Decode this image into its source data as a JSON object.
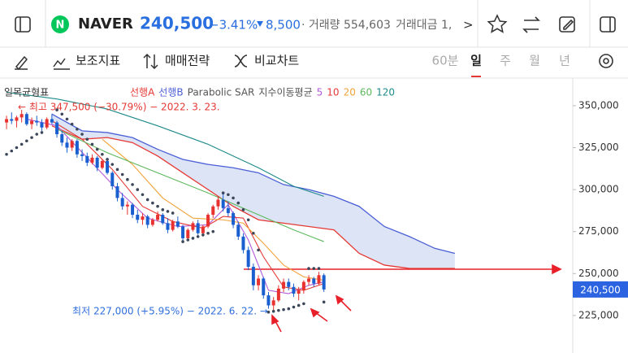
{
  "header": {
    "name": "NAVER",
    "price": "240,500",
    "change_pct": "−3.41%",
    "change": "8,500",
    "volume": "· 거래량 554,603",
    "amount": "거래대금 1,",
    "more": ">"
  },
  "toolbar": {
    "indicators": "보조지표",
    "strategy": "매매전략",
    "compare": "비교차트",
    "periods": [
      "60분",
      "일",
      "주",
      "월",
      "년"
    ],
    "active_period": 1
  },
  "chart_data": {
    "type": "candlestick",
    "title": "일목균형표",
    "xlim": [
      -1.3,
      111.6
    ],
    "ylim": [
      207000,
      364500
    ],
    "yticks": [
      {
        "value": 225000,
        "label": "225,000"
      },
      {
        "value": 250000,
        "label": "250,000"
      },
      {
        "value": 275000,
        "label": "275,000"
      },
      {
        "value": 300000,
        "label": "300,000"
      },
      {
        "value": 325000,
        "label": "325,000"
      },
      {
        "value": 350000,
        "label": "350,000"
      }
    ],
    "candles": {
      "up_color": "#e8322f",
      "down_color": "#1a5fd0",
      "x": [
        0,
        1,
        2,
        3,
        4,
        5,
        6,
        7,
        8,
        9,
        10,
        11,
        12,
        13,
        14,
        15,
        16,
        17,
        18,
        19,
        20,
        21,
        22,
        23,
        24,
        25,
        26,
        27,
        28,
        29,
        30,
        31,
        32,
        33,
        34,
        35,
        36,
        37,
        38,
        39,
        40,
        41,
        42,
        43,
        44,
        45,
        46,
        47,
        48,
        49,
        50,
        51,
        52,
        53,
        54,
        55,
        56,
        57,
        58,
        59,
        60,
        61,
        62,
        63
      ],
      "values": [
        [
          340000,
          344000,
          336000,
          342000
        ],
        [
          342000,
          346000,
          339000,
          341000
        ],
        [
          341000,
          344000,
          337000,
          343000
        ],
        [
          343000,
          347500,
          340000,
          345000
        ],
        [
          345000,
          346000,
          338000,
          339000
        ],
        [
          339000,
          343000,
          336000,
          341000
        ],
        [
          341000,
          344000,
          338000,
          340000
        ],
        [
          340000,
          342000,
          335000,
          337000
        ],
        [
          337000,
          343000,
          336000,
          342000
        ],
        [
          342000,
          345000,
          339000,
          340000
        ],
        [
          340000,
          341000,
          331000,
          333000
        ],
        [
          333000,
          335000,
          326000,
          328000
        ],
        [
          328000,
          331000,
          322000,
          325000
        ],
        [
          325000,
          330000,
          323000,
          329000
        ],
        [
          329000,
          330000,
          319000,
          321000
        ],
        [
          321000,
          324000,
          317000,
          320000
        ],
        [
          320000,
          322000,
          314000,
          316000
        ],
        [
          316000,
          321000,
          315000,
          319000
        ],
        [
          319000,
          320000,
          311000,
          313000
        ],
        [
          313000,
          318000,
          312000,
          317000
        ],
        [
          317000,
          319000,
          309000,
          310000
        ],
        [
          310000,
          311000,
          300000,
          302000
        ],
        [
          302000,
          304000,
          293000,
          295000
        ],
        [
          295000,
          298000,
          288000,
          290000
        ],
        [
          290000,
          293000,
          285000,
          291000
        ],
        [
          291000,
          292000,
          283000,
          285000
        ],
        [
          285000,
          288000,
          280000,
          282000
        ],
        [
          282000,
          286000,
          279000,
          284000
        ],
        [
          284000,
          285000,
          277000,
          279000
        ],
        [
          279000,
          283000,
          278000,
          282000
        ],
        [
          282000,
          287000,
          281000,
          285000
        ],
        [
          285000,
          286000,
          279000,
          280000
        ],
        [
          280000,
          283000,
          274000,
          276000
        ],
        [
          276000,
          282000,
          275000,
          281000
        ],
        [
          281000,
          284000,
          277000,
          278000
        ],
        [
          278000,
          279000,
          269000,
          271000
        ],
        [
          271000,
          277000,
          270000,
          276000
        ],
        [
          276000,
          281000,
          275000,
          280000
        ],
        [
          280000,
          282000,
          273000,
          274000
        ],
        [
          274000,
          279000,
          272000,
          278000
        ],
        [
          278000,
          286000,
          277000,
          285000
        ],
        [
          285000,
          291000,
          283000,
          290000
        ],
        [
          290000,
          296000,
          288000,
          294000
        ],
        [
          294000,
          298000,
          287000,
          289000
        ],
        [
          289000,
          293000,
          284000,
          286000
        ],
        [
          286000,
          287000,
          277000,
          279000
        ],
        [
          279000,
          281000,
          270000,
          272000
        ],
        [
          272000,
          274000,
          262000,
          264000
        ],
        [
          264000,
          266000,
          252000,
          254000
        ],
        [
          254000,
          256000,
          240000,
          243000
        ],
        [
          243000,
          249000,
          240000,
          247000
        ],
        [
          247000,
          248000,
          235000,
          237000
        ],
        [
          237000,
          239000,
          229000,
          231000
        ],
        [
          231000,
          236000,
          227000,
          234000
        ],
        [
          234000,
          243000,
          233000,
          241000
        ],
        [
          241000,
          247000,
          239000,
          245000
        ],
        [
          245000,
          247000,
          240000,
          242000
        ],
        [
          242000,
          244000,
          236000,
          238000
        ],
        [
          238000,
          242000,
          234000,
          240000
        ],
        [
          240000,
          246000,
          238000,
          245000
        ],
        [
          245000,
          249000,
          243000,
          247000
        ],
        [
          247000,
          248000,
          242000,
          244000
        ],
        [
          244000,
          251000,
          243000,
          249000
        ],
        [
          249000,
          250000,
          239000,
          240500
        ]
      ]
    },
    "cloud": {
      "fill": "#d4ddf3",
      "x": [
        9,
        15,
        20,
        25,
        30,
        35,
        40,
        45,
        50,
        55,
        60,
        65,
        70,
        75,
        80,
        85,
        89
      ],
      "span_a": {
        "name": "선행A",
        "color": "#e53935",
        "values": [
          338000,
          330000,
          331000,
          328000,
          320000,
          310000,
          300000,
          290000,
          282000,
          280000,
          278000,
          276000,
          262000,
          255000,
          253000,
          253000,
          253000
        ]
      },
      "span_b": {
        "name": "선행B",
        "color": "#4a5fd6",
        "values": [
          345000,
          335000,
          334000,
          331000,
          324000,
          318000,
          315000,
          313000,
          310000,
          303000,
          300000,
          296000,
          290000,
          278000,
          272000,
          265000,
          262000
        ]
      }
    },
    "sar": {
      "name": "Parabolic SAR",
      "color": "#3b4658",
      "x": [
        0,
        1,
        2,
        3,
        4,
        5,
        6,
        7,
        10,
        11,
        12,
        13,
        14,
        15,
        16,
        17,
        18,
        19,
        20,
        21,
        22,
        23,
        24,
        25,
        26,
        27,
        28,
        29,
        30,
        31,
        32,
        33,
        35,
        36,
        37,
        38,
        39,
        40,
        41,
        43,
        44,
        45,
        46,
        47,
        48,
        49,
        50,
        52,
        53,
        54,
        55,
        56,
        57,
        58,
        59,
        60,
        61,
        62,
        63
      ],
      "values": [
        321000,
        323000,
        325000,
        327000,
        329000,
        331000,
        333000,
        334000,
        347500,
        345000,
        342000,
        339000,
        336000,
        333000,
        330000,
        327000,
        324000,
        321000,
        318000,
        315000,
        312000,
        309000,
        306000,
        303000,
        300000,
        297000,
        294000,
        292000,
        290000,
        288000,
        287000,
        286000,
        269000,
        270000,
        271000,
        272000,
        273000,
        274000,
        275000,
        298000,
        297000,
        295000,
        292000,
        288000,
        282000,
        274000,
        264000,
        227000,
        227500,
        228000,
        228500,
        229000,
        230000,
        231000,
        232000,
        253000,
        253000,
        253000,
        233000
      ]
    },
    "ema": {
      "name": "지수이동평균",
      "series": [
        {
          "name": "5",
          "color": "#b05ad8",
          "x": [
            4,
            10,
            16,
            22,
            28,
            34,
            40,
            44,
            48,
            52,
            56,
            60,
            63
          ],
          "values": [
            342000,
            338000,
            319000,
            300000,
            283000,
            278000,
            279000,
            291000,
            270000,
            240000,
            238000,
            243000,
            245000
          ]
        },
        {
          "name": "10",
          "color": "#e53935",
          "x": [
            9,
            15,
            21,
            27,
            33,
            39,
            43,
            47,
            51,
            55,
            59,
            63
          ],
          "values": [
            341000,
            330000,
            312000,
            290000,
            281000,
            277000,
            284000,
            283000,
            260000,
            242000,
            240000,
            244000
          ]
        },
        {
          "name": "20",
          "color": "#f2a33a",
          "x": [
            19,
            25,
            31,
            37,
            43,
            47,
            51,
            55,
            59,
            63
          ],
          "values": [
            330000,
            315000,
            295000,
            283000,
            282000,
            280000,
            268000,
            255000,
            248000,
            246000
          ]
        },
        {
          "name": "60",
          "color": "#5cb85c",
          "x": [
            10,
            20,
            30,
            40,
            50,
            57,
            63
          ],
          "values": [
            336000,
            322000,
            310000,
            298000,
            285000,
            276000,
            269000
          ]
        },
        {
          "name": "120",
          "color": "#1f8a8a",
          "x": [
            0,
            10,
            20,
            30,
            40,
            50,
            57,
            63
          ],
          "values": [
            358000,
            354000,
            348000,
            338000,
            327000,
            313000,
            302000,
            296000
          ]
        }
      ]
    },
    "annotations": [
      {
        "text": "← 최고 347,500 (−30.79%) − 2022. 3. 23.",
        "color": "#e53935"
      },
      {
        "text": "최저 227,000 (+5.95%) − 2022. 6. 22. →",
        "color": "#2f6fdc"
      }
    ],
    "last_label": "240,500",
    "last_value": 240500,
    "last_color": "#2b63e0"
  }
}
